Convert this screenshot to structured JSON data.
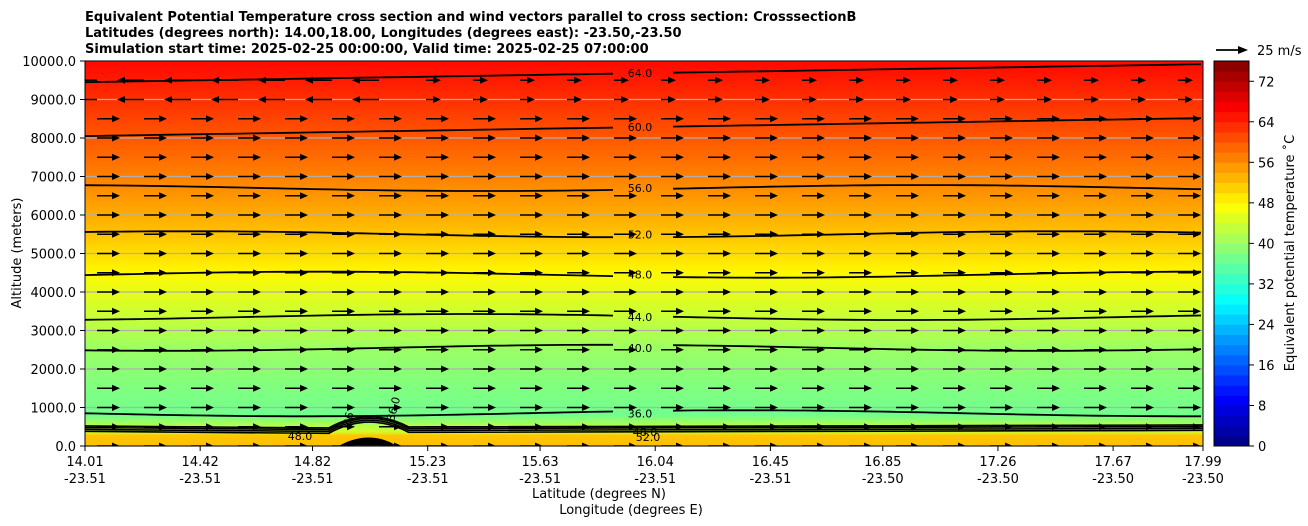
{
  "chart_data": {
    "type": "heatmap",
    "title_lines": [
      "Equivalent Potential Temperature cross section and wind vectors parallel to cross section: CrosssectionB",
      "Latitudes (degrees north): 14.00,18.00, Longitudes (degrees east): -23.50,-23.50",
      "Simulation start time: 2025-02-25 00:00:00, Valid time: 2025-02-25 07:00:00"
    ],
    "xlabel_1": "Latitude (degrees N)",
    "xlabel_2": "Longitude (degrees E)",
    "ylabel": "Altitude (meters)",
    "x_ticks": [
      {
        "lat": "14.01",
        "lon": "-23.51"
      },
      {
        "lat": "14.42",
        "lon": "-23.51"
      },
      {
        "lat": "14.82",
        "lon": "-23.51"
      },
      {
        "lat": "15.23",
        "lon": "-23.51"
      },
      {
        "lat": "15.63",
        "lon": "-23.51"
      },
      {
        "lat": "16.04",
        "lon": "-23.51"
      },
      {
        "lat": "16.45",
        "lon": "-23.51"
      },
      {
        "lat": "16.85",
        "lon": "-23.50"
      },
      {
        "lat": "17.26",
        "lon": "-23.50"
      },
      {
        "lat": "17.67",
        "lon": "-23.50"
      },
      {
        "lat": "17.99",
        "lon": "-23.50"
      }
    ],
    "xlim": [
      14.01,
      17.99
    ],
    "y_ticks": [
      "0.0",
      "1000.0",
      "2000.0",
      "3000.0",
      "4000.0",
      "5000.0",
      "6000.0",
      "7000.0",
      "8000.0",
      "9000.0",
      "10000.0"
    ],
    "ylim": [
      0,
      10000
    ],
    "grid": "horizontal",
    "colorbar": {
      "label": "Equivalent potential temperature ˚C",
      "ticks": [
        "0",
        "8",
        "16",
        "24",
        "32",
        "40",
        "48",
        "56",
        "64",
        "72"
      ],
      "range": [
        0,
        76
      ],
      "colormap": "jet"
    },
    "wind_key": {
      "label": "25 m/s"
    },
    "contours": [
      {
        "value": 36.0,
        "label": "36.0",
        "altitude": 850
      },
      {
        "value": 40.0,
        "label": "40.0",
        "altitude": 2550
      },
      {
        "value": 44.0,
        "label": "44.0",
        "altitude": 3350
      },
      {
        "value": 48.0,
        "label": "48.0",
        "altitude": 4450
      },
      {
        "value": 52.0,
        "label": "52.0",
        "altitude": 5500
      },
      {
        "value": 56.0,
        "label": "56.0",
        "altitude": 6700
      },
      {
        "value": 60.0,
        "label": "60.0",
        "altitude": 8050
      },
      {
        "value": 64.0,
        "label": "64.0",
        "altitude": 9450
      }
    ],
    "near_surface_labels": [
      "48.0",
      "48.0",
      "52.0",
      "36",
      "36.0"
    ],
    "theta_e_profile": [
      {
        "altitude": 0,
        "value": 54
      },
      {
        "altitude": 200,
        "value": 52
      },
      {
        "altitude": 400,
        "value": 44
      },
      {
        "altitude": 800,
        "value": 37
      },
      {
        "altitude": 1500,
        "value": 38
      },
      {
        "altitude": 2500,
        "value": 40
      },
      {
        "altitude": 3500,
        "value": 44
      },
      {
        "altitude": 4500,
        "value": 48
      },
      {
        "altitude": 5500,
        "value": 52
      },
      {
        "altitude": 6700,
        "value": 56
      },
      {
        "altitude": 8000,
        "value": 60
      },
      {
        "altitude": 9000,
        "value": 63
      },
      {
        "altitude": 10000,
        "value": 66
      }
    ],
    "wind_vectors_note": "predominantly rightward (southward to northward) vectors, leftward near top-left"
  }
}
